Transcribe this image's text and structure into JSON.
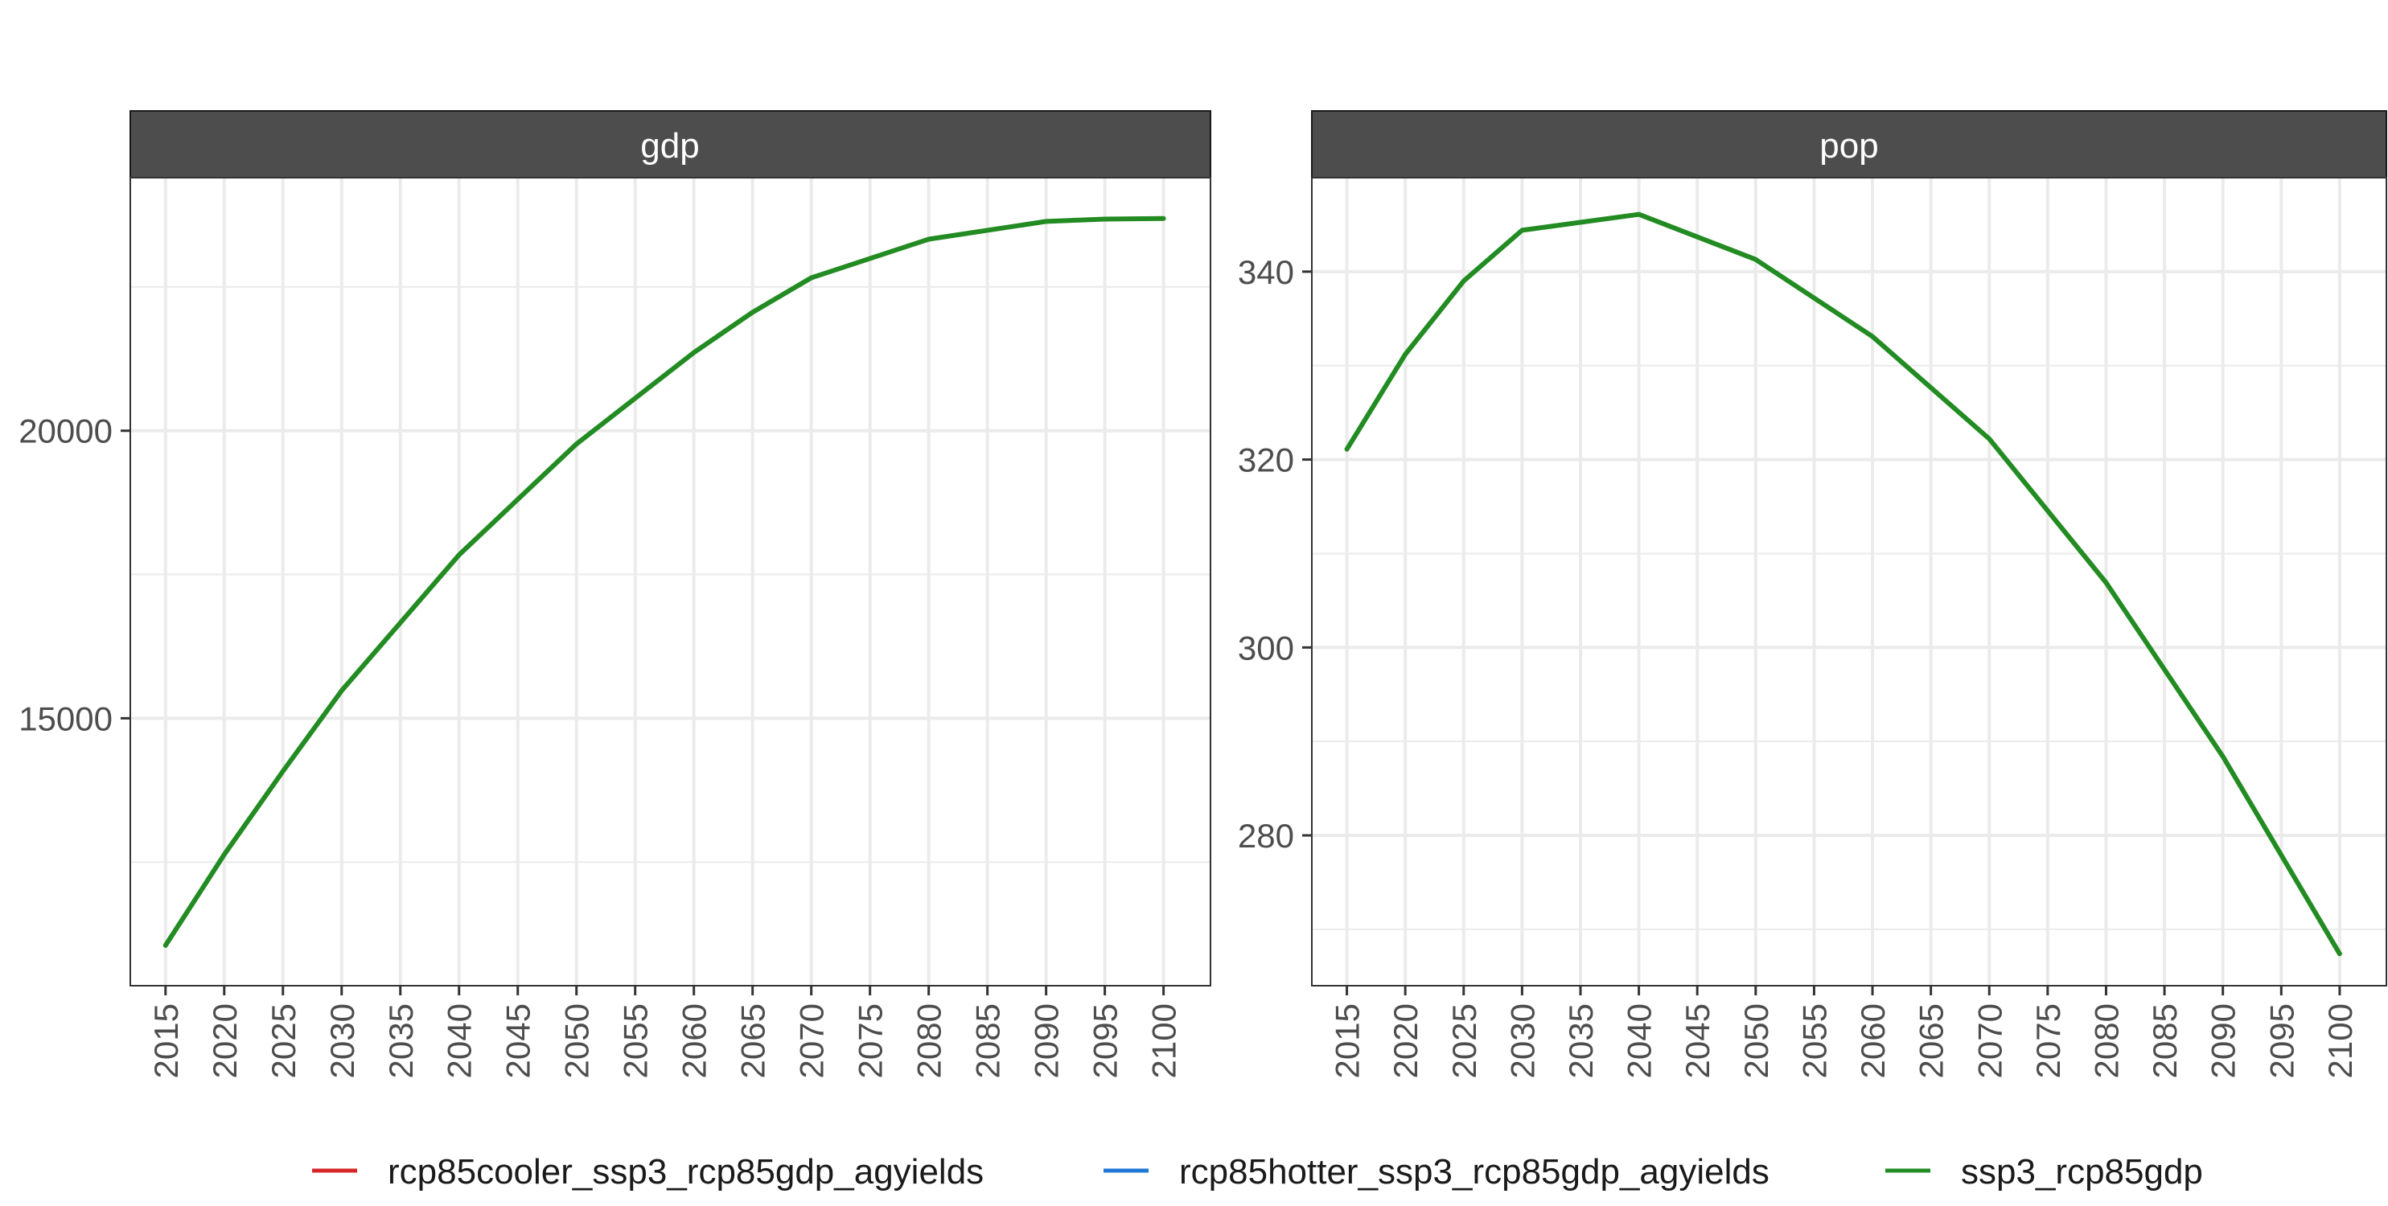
{
  "chart_data": {
    "type": "line",
    "x": [
      2015,
      2020,
      2025,
      2030,
      2035,
      2040,
      2045,
      2050,
      2055,
      2060,
      2065,
      2070,
      2075,
      2080,
      2085,
      2090,
      2095,
      2100
    ],
    "x_tick_labels": [
      "2015",
      "2020",
      "2025",
      "2030",
      "2035",
      "2040",
      "2045",
      "2050",
      "2055",
      "2060",
      "2065",
      "2070",
      "2075",
      "2080",
      "2085",
      "2090",
      "2095",
      "2100"
    ],
    "xlim": [
      2012,
      2104
    ],
    "panels": [
      {
        "strip_label": "gdp",
        "ylim": [
          10350,
          24400
        ],
        "y_ticks": [
          15000,
          20000
        ],
        "y_tick_labels": [
          "15000",
          "20000"
        ],
        "y_minor_ticks": [
          12500,
          17500,
          22500
        ],
        "series": [
          {
            "name": "ssp3_rcp85gdp",
            "x": [
              2015,
              2020,
              2025,
              2030,
              2040,
              2050,
              2060,
              2065,
              2070,
              2080,
              2090,
              2095,
              2100
            ],
            "values": [
              11050,
              12630,
              14080,
              15480,
              17840,
              19770,
              21360,
              22060,
              22660,
              23330,
              23640,
              23680,
              23690
            ]
          }
        ]
      },
      {
        "strip_label": "pop",
        "ylim": [
          264,
          350
        ],
        "y_ticks": [
          280,
          300,
          320,
          340
        ],
        "y_tick_labels": [
          "280",
          "300",
          "320",
          "340"
        ],
        "y_minor_ticks": [
          270,
          290,
          310,
          330
        ],
        "series": [
          {
            "name": "ssp3_rcp85gdp",
            "x": [
              2015,
              2020,
              2025,
              2030,
              2040,
              2050,
              2060,
              2070,
              2080,
              2090,
              2100
            ],
            "values": [
              321.1,
              331.2,
              339.0,
              344.4,
              346.1,
              341.3,
              333.1,
              322.2,
              306.9,
              288.4,
              267.4
            ]
          }
        ]
      }
    ],
    "legend": {
      "position": "bottom",
      "entries": [
        {
          "name": "rcp85cooler_ssp3_rcp85gdp_agyields",
          "color": "#D62728"
        },
        {
          "name": "rcp85hotter_ssp3_rcp85gdp_agyields",
          "color": "#1F77D4"
        },
        {
          "name": "ssp3_rcp85gdp",
          "color": "#228B22"
        }
      ]
    },
    "colors": {
      "strip_background": "#4d4d4d",
      "grid": "#ebebeb",
      "panel_border": "#333333",
      "line": "#228B22"
    }
  }
}
